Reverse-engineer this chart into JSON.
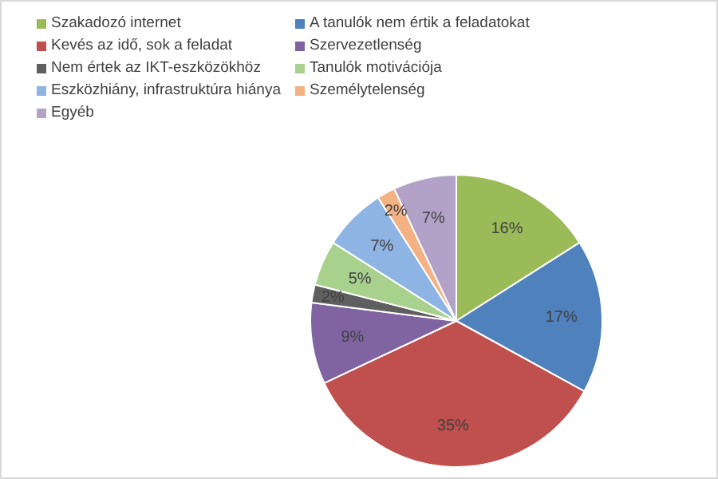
{
  "chart_data": {
    "type": "pie",
    "categories": [
      "Szakadozó internet",
      "A tanulók nem értik a feladatokat",
      "Kevés az idő, sok a feladat",
      "Szervezetlenség",
      "Nem értek az IKT-eszközökhöz",
      "Tanulók motivációja",
      "Eszközhiány, infrastruktúra hiánya",
      "Személytelenség",
      "Egyéb"
    ],
    "values": [
      16,
      17,
      35,
      9,
      2,
      5,
      7,
      2,
      7
    ],
    "value_labels": [
      "16%",
      "17%",
      "35%",
      "9%",
      "2%",
      "5%",
      "7%",
      "2%",
      "7%"
    ],
    "colors": [
      "#9bbb59",
      "#4f81bd",
      "#c0504d",
      "#8064a2",
      "#5f5f5f",
      "#a9d18e",
      "#8eb4e3",
      "#f4b183",
      "#b3a2c7"
    ],
    "legend": "top"
  }
}
